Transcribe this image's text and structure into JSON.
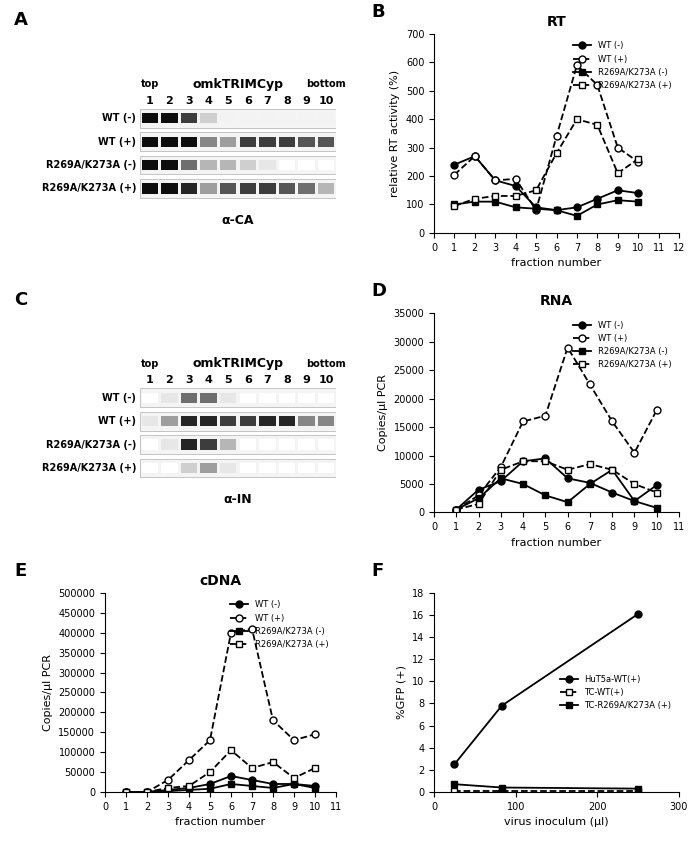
{
  "chart_data": [
    {
      "type": "blot",
      "panel": "A",
      "title": "omkTRIMCyp",
      "top_label": "top",
      "bottom_label": "bottom",
      "antibody": "α-CA",
      "lanes": [
        1,
        2,
        3,
        4,
        5,
        6,
        7,
        8,
        9,
        10
      ],
      "rows": [
        {
          "name": "WT (-)",
          "intensity": [
            1.0,
            1.0,
            0.8,
            0.2,
            0.05,
            0.05,
            0.05,
            0.05,
            0.05,
            0.05
          ]
        },
        {
          "name": "WT (+)",
          "intensity": [
            1.0,
            1.0,
            1.0,
            0.5,
            0.4,
            0.8,
            0.8,
            0.8,
            0.7,
            0.7
          ]
        },
        {
          "name": "R269A/K273A (-)",
          "intensity": [
            1.0,
            1.0,
            0.6,
            0.3,
            0.3,
            0.2,
            0.1,
            0.0,
            0.0,
            0.0
          ]
        },
        {
          "name": "R269A/K273A (+)",
          "intensity": [
            1.0,
            1.0,
            0.9,
            0.4,
            0.7,
            0.8,
            0.8,
            0.7,
            0.6,
            0.3
          ]
        }
      ]
    },
    {
      "type": "line",
      "panel": "B",
      "title": "RT",
      "x_label": "fraction number",
      "y_label": "relative RT activity (%)",
      "x": [
        1,
        2,
        3,
        4,
        5,
        6,
        7,
        8,
        9,
        10
      ],
      "xlim": [
        0,
        12
      ],
      "xticks": [
        0,
        1,
        2,
        3,
        4,
        5,
        6,
        7,
        8,
        9,
        10,
        11,
        12
      ],
      "ylim": [
        0,
        700
      ],
      "yticks": [
        0,
        100,
        200,
        300,
        400,
        500,
        600,
        700
      ],
      "legend": "upper right",
      "series": [
        {
          "name": "WT (-)",
          "color": "#000000",
          "marker": "circle",
          "line_style": "solid",
          "values": [
            240,
            270,
            185,
            165,
            90,
            80,
            90,
            120,
            150,
            140
          ]
        },
        {
          "name": "WT (+)",
          "color": "#000000",
          "marker": "open_circle",
          "line_style": "dashed",
          "values": [
            205,
            270,
            185,
            190,
            80,
            340,
            590,
            520,
            300,
            250
          ]
        },
        {
          "name": "R269A/K273A (-)",
          "color": "#000000",
          "marker": "square",
          "line_style": "solid",
          "values": [
            100,
            110,
            110,
            90,
            85,
            80,
            60,
            100,
            115,
            110
          ]
        },
        {
          "name": "R269A/K273A (+)",
          "color": "#000000",
          "marker": "open_square",
          "line_style": "dashed",
          "values": [
            95,
            120,
            130,
            130,
            150,
            280,
            400,
            380,
            210,
            260
          ]
        }
      ]
    },
    {
      "type": "blot",
      "panel": "C",
      "title": "omkTRIMCyp",
      "top_label": "top",
      "bottom_label": "bottom",
      "antibody": "α-IN",
      "lanes": [
        1,
        2,
        3,
        4,
        5,
        6,
        7,
        8,
        9,
        10
      ],
      "rows": [
        {
          "name": "WT (-)",
          "intensity": [
            0.0,
            0.1,
            0.6,
            0.6,
            0.1,
            0.0,
            0.0,
            0.0,
            0.0,
            0.0
          ]
        },
        {
          "name": "WT (+)",
          "intensity": [
            0.1,
            0.4,
            0.9,
            0.9,
            0.8,
            0.8,
            0.9,
            0.9,
            0.5,
            0.5
          ]
        },
        {
          "name": "R269A/K273A (-)",
          "intensity": [
            0.0,
            0.1,
            0.9,
            0.8,
            0.3,
            0.0,
            0.0,
            0.0,
            0.0,
            0.0
          ]
        },
        {
          "name": "R269A/K273A (+)",
          "intensity": [
            0.0,
            0.0,
            0.2,
            0.4,
            0.1,
            0.0,
            0.0,
            0.0,
            0.0,
            0.0
          ]
        }
      ]
    },
    {
      "type": "line",
      "panel": "D",
      "title": "RNA",
      "x_label": "fraction number",
      "y_label": "Copies/µl PCR",
      "x": [
        1,
        2,
        3,
        4,
        5,
        6,
        7,
        8,
        9,
        10
      ],
      "xlim": [
        0,
        11
      ],
      "xticks": [
        0,
        1,
        2,
        3,
        4,
        5,
        6,
        7,
        8,
        9,
        10,
        11
      ],
      "ylim": [
        0,
        35000
      ],
      "yticks": [
        0,
        5000,
        10000,
        15000,
        20000,
        25000,
        30000,
        35000
      ],
      "legend": "upper right",
      "series": [
        {
          "name": "WT (-)",
          "color": "#000000",
          "marker": "circle",
          "line_style": "solid",
          "values": [
            500,
            4000,
            5500,
            9000,
            9500,
            6000,
            5200,
            3500,
            2000,
            4800
          ]
        },
        {
          "name": "WT (+)",
          "color": "#000000",
          "marker": "open_circle",
          "line_style": "dashed",
          "values": [
            500,
            3000,
            8000,
            16000,
            17000,
            29000,
            22500,
            16000,
            10500,
            18000
          ]
        },
        {
          "name": "R269A/K273A (-)",
          "color": "#000000",
          "marker": "square",
          "line_style": "solid",
          "values": [
            500,
            2500,
            6000,
            5000,
            3000,
            1800,
            5000,
            7500,
            2000,
            800
          ]
        },
        {
          "name": "R269A/K273A (+)",
          "color": "#000000",
          "marker": "open_square",
          "line_style": "dashed",
          "values": [
            500,
            1500,
            7500,
            9000,
            9000,
            7500,
            8500,
            7500,
            5000,
            3500
          ]
        }
      ]
    },
    {
      "type": "line",
      "panel": "E",
      "title": "cDNA",
      "x_label": "fraction number",
      "y_label": "Copies/µl PCR",
      "x": [
        1,
        2,
        3,
        4,
        5,
        6,
        7,
        8,
        9,
        10
      ],
      "xlim": [
        0,
        11
      ],
      "xticks": [
        0,
        1,
        2,
        3,
        4,
        5,
        6,
        7,
        8,
        9,
        10,
        11
      ],
      "ylim": [
        0,
        500000
      ],
      "yticks": [
        0,
        50000,
        100000,
        150000,
        200000,
        250000,
        300000,
        350000,
        400000,
        450000,
        500000
      ],
      "legend": "upper right",
      "series": [
        {
          "name": "WT (-)",
          "color": "#000000",
          "marker": "circle",
          "line_style": "solid",
          "values": [
            0,
            0,
            5000,
            10000,
            20000,
            40000,
            30000,
            20000,
            20000,
            15000
          ]
        },
        {
          "name": "WT (+)",
          "color": "#000000",
          "marker": "open_circle",
          "line_style": "dashed",
          "values": [
            0,
            0,
            30000,
            80000,
            130000,
            400000,
            410000,
            180000,
            130000,
            145000
          ]
        },
        {
          "name": "R269A/K273A (-)",
          "color": "#000000",
          "marker": "square",
          "line_style": "solid",
          "values": [
            0,
            0,
            2000,
            5000,
            8000,
            20000,
            15000,
            10000,
            20000,
            10000
          ]
        },
        {
          "name": "R269A/K273A (+)",
          "color": "#000000",
          "marker": "open_square",
          "line_style": "dashed",
          "values": [
            0,
            0,
            10000,
            15000,
            50000,
            105000,
            60000,
            75000,
            35000,
            60000
          ]
        }
      ]
    },
    {
      "type": "line",
      "panel": "F",
      "x_label": "virus inoculum (µl)",
      "y_label": "%GFP (+)",
      "x": [
        25,
        83,
        250
      ],
      "xlim": [
        0,
        300
      ],
      "xticks": [
        0,
        100,
        200,
        300
      ],
      "ylim": [
        0,
        18
      ],
      "yticks": [
        0,
        2,
        4,
        6,
        8,
        10,
        12,
        14,
        16,
        18
      ],
      "legend": "center right",
      "series": [
        {
          "name": "HuT5a-WT(+)",
          "color": "#000000",
          "marker": "circle",
          "line_style": "solid",
          "values": [
            2.5,
            7.8,
            16.1
          ]
        },
        {
          "name": "TC-WT(+)",
          "color": "#000000",
          "marker": "open_square",
          "line_style": "dashed",
          "values": [
            0.1,
            0.1,
            0.1
          ]
        },
        {
          "name": "TC-R269A/K273A (+)",
          "color": "#000000",
          "marker": "square",
          "line_style": "solid",
          "values": [
            0.7,
            0.4,
            0.3
          ]
        }
      ]
    }
  ]
}
